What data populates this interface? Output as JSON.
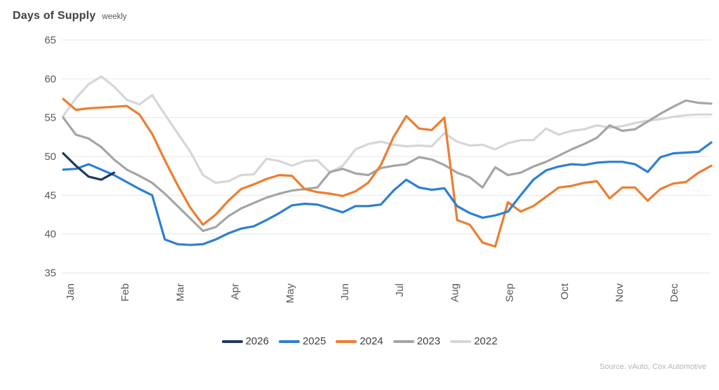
{
  "header": {
    "title": "Days of Supply",
    "subtitle": "weekly"
  },
  "footer": {
    "source": "Source: vAuto, Cox Automotive"
  },
  "colors": {
    "title_text": "#404040",
    "axis_text": "#595959",
    "gridline": "#e6e6e6",
    "source_text": "#b5b5b5",
    "series_2026": "#1f3864",
    "series_2025": "#2d7fd3",
    "series_2024": "#ed7d31",
    "series_2023": "#a5a5a5",
    "series_2022": "#d6d6d6"
  },
  "chart_data": {
    "type": "line",
    "title": "Days of Supply",
    "subtitle": "weekly",
    "xlabel": "",
    "ylabel": "",
    "x_unit": "week",
    "ylim": [
      35,
      65
    ],
    "y_ticks": [
      65,
      60,
      55,
      50,
      45,
      40,
      35
    ],
    "grid": "horizontal",
    "legend_position": "bottom",
    "months": [
      "Jan",
      "Feb",
      "Mar",
      "Apr",
      "May",
      "Jun",
      "Jul",
      "Aug",
      "Sep",
      "Oct",
      "Nov",
      "Dec"
    ],
    "series": [
      {
        "name": "2026",
        "color": "#1f3864",
        "values": [
          50.4,
          48.8,
          47.4,
          47.0,
          47.9
        ]
      },
      {
        "name": "2025",
        "color": "#2d7fd3",
        "values": [
          48.3,
          48.4,
          49.0,
          48.3,
          47.6,
          46.7,
          45.8,
          45.0,
          39.3,
          38.7,
          38.6,
          38.7,
          39.3,
          40.1,
          40.7,
          41.0,
          41.8,
          42.7,
          43.7,
          43.9,
          43.8,
          43.3,
          42.8,
          43.6,
          43.6,
          43.8,
          45.6,
          47.0,
          46.0,
          45.7,
          45.9,
          43.6,
          42.7,
          42.1,
          42.4,
          42.9,
          45.0,
          47.0,
          48.2,
          48.7,
          49.0,
          48.9,
          49.2,
          49.3,
          49.3,
          49.0,
          48.0,
          49.9,
          50.4,
          50.5,
          50.6,
          51.8
        ]
      },
      {
        "name": "2024",
        "color": "#ed7d31",
        "values": [
          57.4,
          56.0,
          56.2,
          56.3,
          56.4,
          56.5,
          55.4,
          52.9,
          49.5,
          46.3,
          43.4,
          41.2,
          42.5,
          44.3,
          45.8,
          46.4,
          47.1,
          47.6,
          47.5,
          45.8,
          45.4,
          45.2,
          44.9,
          45.5,
          46.6,
          48.9,
          52.5,
          55.2,
          53.6,
          53.4,
          55.0,
          41.8,
          41.2,
          38.9,
          38.4,
          44.1,
          42.9,
          43.6,
          44.8,
          46.0,
          46.2,
          46.6,
          46.8,
          44.6,
          46.0,
          46.0,
          44.3,
          45.8,
          46.5,
          46.7,
          47.9,
          48.8
        ]
      },
      {
        "name": "2023",
        "color": "#a5a5a5",
        "values": [
          55.0,
          52.8,
          52.3,
          51.2,
          49.6,
          48.3,
          47.5,
          46.6,
          45.2,
          43.6,
          42.0,
          40.4,
          40.9,
          42.3,
          43.3,
          44.0,
          44.7,
          45.2,
          45.6,
          45.8,
          46.0,
          48.0,
          48.4,
          47.8,
          47.6,
          48.5,
          48.8,
          49.0,
          49.9,
          49.6,
          48.9,
          47.9,
          47.3,
          46.0,
          48.6,
          47.6,
          47.9,
          48.7,
          49.3,
          50.1,
          50.9,
          51.6,
          52.4,
          54.0,
          53.3,
          53.5,
          54.5,
          55.5,
          56.4,
          57.2,
          56.9,
          56.8
        ]
      },
      {
        "name": "2022",
        "color": "#d6d6d6",
        "values": [
          55.2,
          57.5,
          59.3,
          60.3,
          59.0,
          57.3,
          56.7,
          57.9,
          55.4,
          53.0,
          50.6,
          47.6,
          46.6,
          46.8,
          47.6,
          47.7,
          49.7,
          49.4,
          48.8,
          49.4,
          49.5,
          47.9,
          48.8,
          50.9,
          51.6,
          51.9,
          51.5,
          51.3,
          51.4,
          51.3,
          53.0,
          51.9,
          51.4,
          51.5,
          50.9,
          51.7,
          52.1,
          52.1,
          53.6,
          52.8,
          53.3,
          53.5,
          54.0,
          53.7,
          53.9,
          54.3,
          54.6,
          54.8,
          55.1,
          55.3,
          55.4,
          55.4
        ]
      }
    ],
    "legend": [
      "2026",
      "2025",
      "2024",
      "2023",
      "2022"
    ]
  }
}
